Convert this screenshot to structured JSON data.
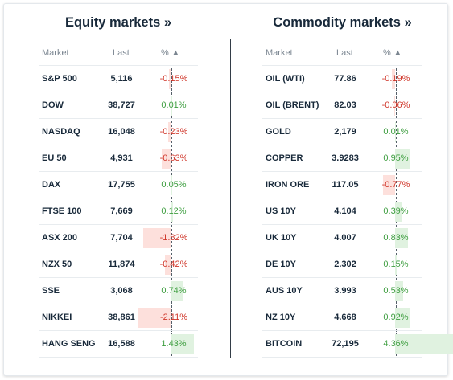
{
  "equity": {
    "title": "Equity markets »",
    "headers": {
      "market": "Market",
      "last": "Last",
      "pct": "% ▲"
    },
    "rows": [
      {
        "name": "S&P 500",
        "last": "5,116",
        "pct": "-0.15%",
        "change": -0.15
      },
      {
        "name": "DOW",
        "last": "38,727",
        "pct": "0.01%",
        "change": 0.01
      },
      {
        "name": "NASDAQ",
        "last": "16,048",
        "pct": "-0.23%",
        "change": -0.23
      },
      {
        "name": "EU 50",
        "last": "4,931",
        "pct": "-0.63%",
        "change": -0.63
      },
      {
        "name": "DAX",
        "last": "17,755",
        "pct": "0.05%",
        "change": 0.05
      },
      {
        "name": "FTSE 100",
        "last": "7,669",
        "pct": "0.12%",
        "change": 0.12
      },
      {
        "name": "ASX 200",
        "last": "7,704",
        "pct": "-1.82%",
        "change": -1.82
      },
      {
        "name": "NZX 50",
        "last": "11,874",
        "pct": "-0.42%",
        "change": -0.42
      },
      {
        "name": "SSE",
        "last": "3,068",
        "pct": "0.74%",
        "change": 0.74
      },
      {
        "name": "NIKKEI",
        "last": "38,861",
        "pct": "-2.11%",
        "change": -2.11
      },
      {
        "name": "HANG SENG",
        "last": "16,588",
        "pct": "1.43%",
        "change": 1.43
      }
    ]
  },
  "commodity": {
    "title": "Commodity markets »",
    "headers": {
      "market": "Market",
      "last": "Last",
      "pct": "% ▲"
    },
    "rows": [
      {
        "name": "OIL (WTI)",
        "last": "77.86",
        "pct": "-0.19%",
        "change": -0.19
      },
      {
        "name": "OIL (BRENT)",
        "last": "82.03",
        "pct": "-0.06%",
        "change": -0.06
      },
      {
        "name": "GOLD",
        "last": "2,179",
        "pct": "0.01%",
        "change": 0.01
      },
      {
        "name": "COPPER",
        "last": "3.9283",
        "pct": "0.95%",
        "change": 0.95
      },
      {
        "name": "IRON ORE",
        "last": "117.05",
        "pct": "-0.77%",
        "change": -0.77
      },
      {
        "name": "US 10Y",
        "last": "4.104",
        "pct": "0.39%",
        "change": 0.39
      },
      {
        "name": "UK 10Y",
        "last": "4.007",
        "pct": "0.83%",
        "change": 0.83
      },
      {
        "name": "DE 10Y",
        "last": "2.302",
        "pct": "0.15%",
        "change": 0.15
      },
      {
        "name": "AUS 10Y",
        "last": "3.993",
        "pct": "0.53%",
        "change": 0.53
      },
      {
        "name": "NZ 10Y",
        "last": "4.668",
        "pct": "0.92%",
        "change": 0.92
      },
      {
        "name": "BITCOIN",
        "last": "72,195",
        "pct": "4.36%",
        "change": 4.36
      }
    ]
  },
  "colors": {
    "negative_text": "#d0362a",
    "positive_text": "#3e9e40",
    "negative_bar": "#fde0dc",
    "positive_bar": "#e0f2e0"
  }
}
